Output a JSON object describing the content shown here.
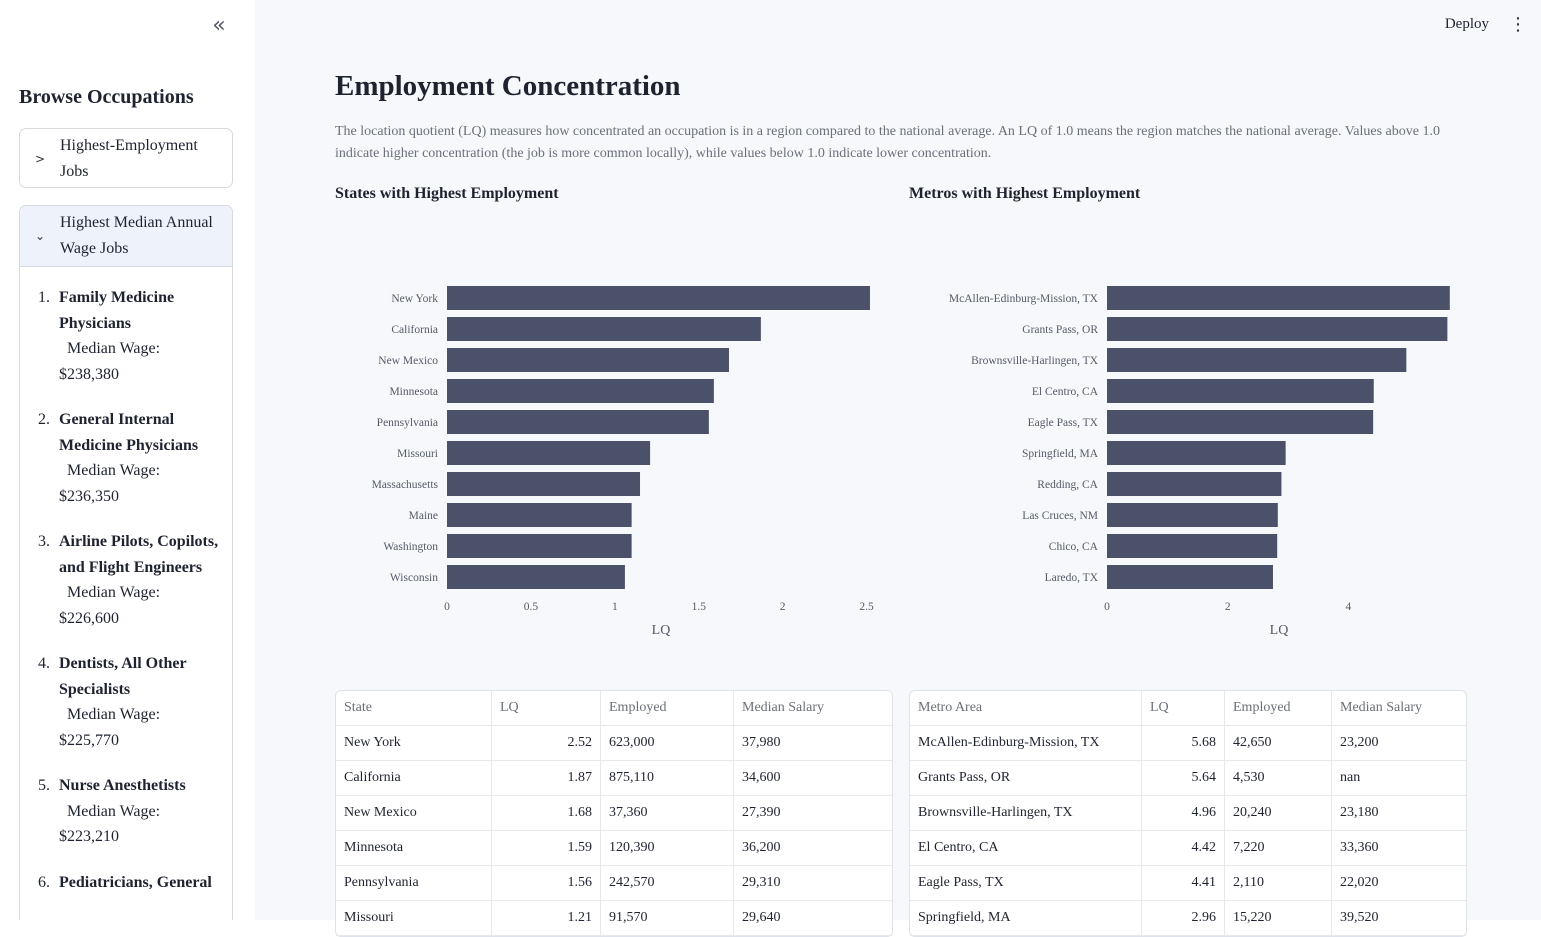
{
  "sidebar": {
    "collapse_icon": "«",
    "title": "Browse Occupations",
    "expander1": {
      "label": "Highest-Employment Jobs",
      "icon": "chevron-right-icon"
    },
    "expander2": {
      "label": "Highest Median Annual Wage Jobs",
      "icon": "chevron-down-icon"
    },
    "occupations": [
      {
        "num": "1.",
        "name": "Family Medicine Physicians",
        "wage_label": "Median Wage:",
        "wage": "$238,380"
      },
      {
        "num": "2.",
        "name": "General Internal Medicine Physicians",
        "wage_label": "Median Wage:",
        "wage": "$236,350"
      },
      {
        "num": "3.",
        "name": "Airline Pilots, Copilots, and Flight Engineers",
        "wage_label": "Median Wage:",
        "wage": "$226,600"
      },
      {
        "num": "4.",
        "name": "Dentists, All Other Specialists",
        "wage_label": "Median Wage:",
        "wage": "$225,770"
      },
      {
        "num": "5.",
        "name": "Nurse Anesthetists",
        "wage_label": "Median Wage:",
        "wage": "$223,210"
      },
      {
        "num": "6.",
        "name": "Pediatricians, General",
        "wage_label": "",
        "wage": ""
      }
    ]
  },
  "topbar": {
    "deploy_label": "Deploy",
    "menu_icon": "⋮"
  },
  "page": {
    "title": "Employment Concentration",
    "description": "The location quotient (LQ) measures how concentrated an occupation is in a region compared to the national average. An LQ of 1.0 means the region matches the national average. Values above 1.0 indicate higher concentration (the job is more common locally), while values below 1.0 indicate lower concentration.",
    "states_title": "States with Highest Employment",
    "metros_title": "Metros with Highest Employment"
  },
  "colors": {
    "bar": "#4a5169",
    "accent_bg": "#eef2fb"
  },
  "chart_data": [
    {
      "type": "bar",
      "orientation": "horizontal",
      "categories": [
        "New York",
        "California",
        "New Mexico",
        "Minnesota",
        "Pennsylvania",
        "Missouri",
        "Massachusetts",
        "Maine",
        "Washington",
        "Wisconsin"
      ],
      "values": [
        2.52,
        1.87,
        1.68,
        1.59,
        1.56,
        1.21,
        1.15,
        1.1,
        1.1,
        1.06
      ],
      "xlabel": "LQ",
      "xlim": [
        0,
        2.55
      ],
      "xticks": [
        0,
        0.5,
        1,
        1.5,
        2,
        2.5
      ],
      "xtick_labels": [
        "0",
        "0.5",
        "1",
        "1.5",
        "2",
        "2.5"
      ]
    },
    {
      "type": "bar",
      "orientation": "horizontal",
      "categories": [
        "McAllen-Edinburg-Mission, TX",
        "Grants Pass, OR",
        "Brownsville-Harlingen, TX",
        "El Centro, CA",
        "Eagle Pass, TX",
        "Springfield, MA",
        "Redding, CA",
        "Las Cruces, NM",
        "Chico, CA",
        "Laredo, TX"
      ],
      "values": [
        5.68,
        5.64,
        4.96,
        4.42,
        4.41,
        2.96,
        2.89,
        2.83,
        2.82,
        2.75
      ],
      "xlabel": "LQ",
      "xlim": [
        0,
        5.7
      ],
      "xticks": [
        0,
        2,
        4
      ],
      "xtick_labels": [
        "0",
        "2",
        "4"
      ]
    }
  ],
  "states_table": {
    "columns": [
      "State",
      "LQ",
      "Employed",
      "Median Salary"
    ],
    "rows": [
      [
        "New York",
        "2.52",
        "623,000",
        "37,980"
      ],
      [
        "California",
        "1.87",
        "875,110",
        "34,600"
      ],
      [
        "New Mexico",
        "1.68",
        "37,360",
        "27,390"
      ],
      [
        "Minnesota",
        "1.59",
        "120,390",
        "36,200"
      ],
      [
        "Pennsylvania",
        "1.56",
        "242,570",
        "29,310"
      ],
      [
        "Missouri",
        "1.21",
        "91,570",
        "29,640"
      ]
    ]
  },
  "metros_table": {
    "columns": [
      "Metro Area",
      "LQ",
      "Employed",
      "Median Salary"
    ],
    "rows": [
      [
        "McAllen-Edinburg-Mission, TX",
        "5.68",
        "42,650",
        "23,200"
      ],
      [
        "Grants Pass, OR",
        "5.64",
        "4,530",
        "nan"
      ],
      [
        "Brownsville-Harlingen, TX",
        "4.96",
        "20,240",
        "23,180"
      ],
      [
        "El Centro, CA",
        "4.42",
        "7,220",
        "33,360"
      ],
      [
        "Eagle Pass, TX",
        "4.41",
        "2,110",
        "22,020"
      ],
      [
        "Springfield, MA",
        "2.96",
        "15,220",
        "39,520"
      ]
    ]
  }
}
